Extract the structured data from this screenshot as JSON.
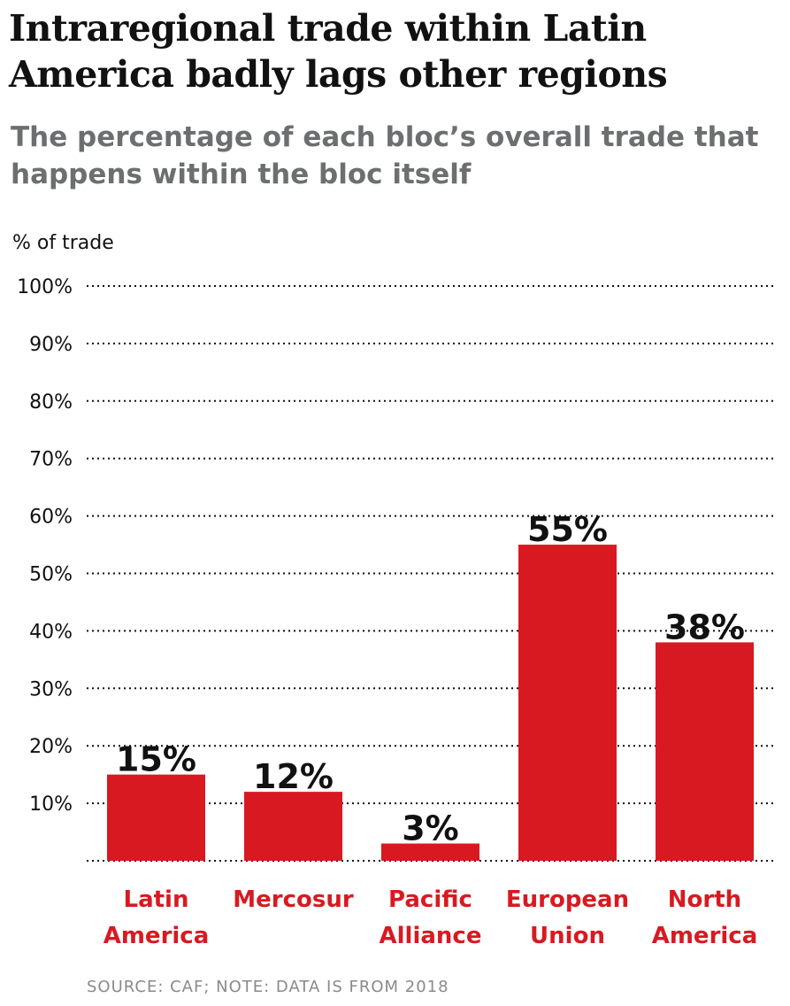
{
  "title": "Intraregional trade within Latin America badly lags other regions",
  "subtitle": "The percentage of each bloc’s overall trade that happens within the bloc itself",
  "source": "SOURCE: CAF; NOTE: DATA IS FROM 2018",
  "chart_data": {
    "type": "bar",
    "ylabel": "% of trade",
    "categories": [
      [
        "Latin",
        "America"
      ],
      [
        "Mercosur"
      ],
      [
        "Pacific",
        "Alliance"
      ],
      [
        "European",
        "Union"
      ],
      [
        "North",
        "America"
      ]
    ],
    "values": [
      15,
      12,
      3,
      55,
      38
    ],
    "data_labels": [
      "15%",
      "12%",
      "3%",
      "55%",
      "38%"
    ],
    "yticks": [
      10,
      20,
      30,
      40,
      50,
      60,
      70,
      80,
      90,
      100
    ],
    "ytick_labels": [
      "10%",
      "20%",
      "30%",
      "40%",
      "50%",
      "60%",
      "70%",
      "80%",
      "90%",
      "100%"
    ],
    "ylim": [
      0,
      100
    ],
    "grid": "dotted horizontal",
    "bar_color": "#d91921",
    "category_color": "#d91921"
  }
}
